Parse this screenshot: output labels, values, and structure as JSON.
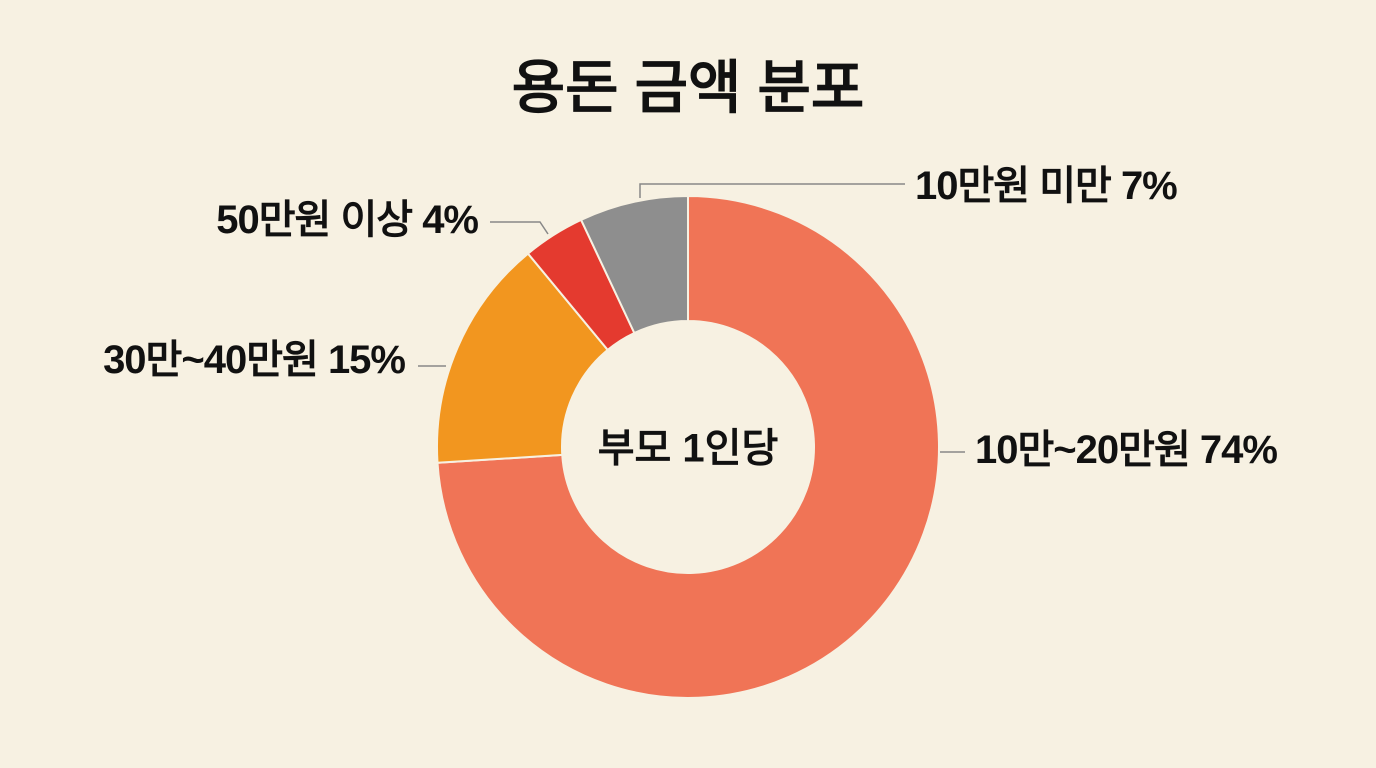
{
  "chart_data": {
    "type": "donut",
    "title": "용돈 금액 분포",
    "center_label": "부모 1인당",
    "categories": [
      "10만~20만원",
      "30만~40만원",
      "50만원 이상",
      "10만원 미만"
    ],
    "values": [
      74,
      15,
      4,
      7
    ],
    "value_labels": [
      "74%",
      "15%",
      "4%",
      "7%"
    ],
    "colors": [
      "#f07456",
      "#f2961f",
      "#e43a2f",
      "#8e8e8e"
    ]
  }
}
